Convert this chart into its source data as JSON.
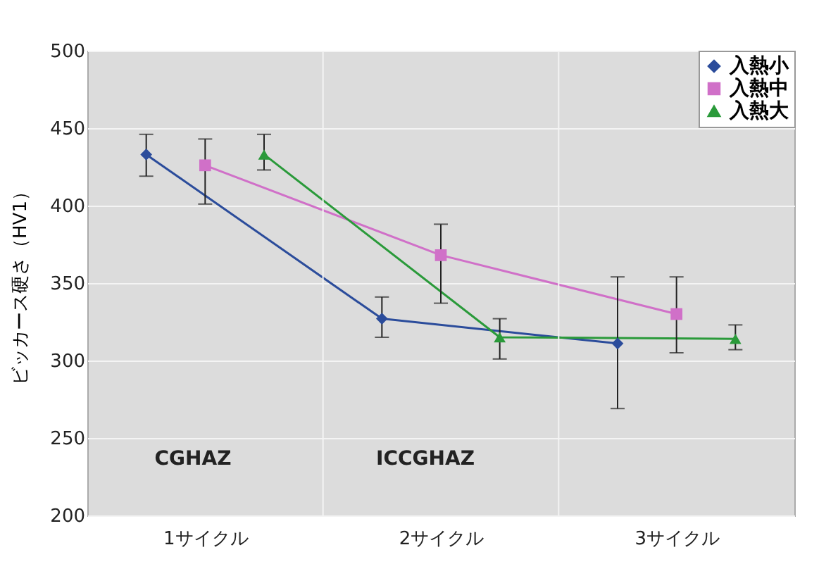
{
  "chart_data": {
    "type": "line",
    "ylabel": "ビッカース硬さ（HV1）",
    "xlim": [
      0.5,
      3.5
    ],
    "xticks": [
      {
        "value": 1,
        "label": "1サイクル"
      },
      {
        "value": 2,
        "label": "2サイクル"
      },
      {
        "value": 3,
        "label": "3サイクル"
      }
    ],
    "ylim": [
      200,
      500
    ],
    "yticks": [
      200,
      250,
      300,
      350,
      400,
      450,
      500
    ],
    "grid": "y",
    "legend": "top right",
    "series": [
      {
        "name": "入熱小",
        "color": "#2b4c9b",
        "marker": "diamond",
        "x": [
          0.75,
          1.75,
          2.75
        ],
        "values": [
          433,
          327,
          311
        ],
        "errors": [
          [
            419,
            446
          ],
          [
            315,
            341
          ],
          [
            269,
            354
          ]
        ]
      },
      {
        "name": "入熱中",
        "color": "#d070c8",
        "marker": "square",
        "x": [
          1,
          2,
          3
        ],
        "values": [
          426,
          368,
          330
        ],
        "errors": [
          [
            401,
            443
          ],
          [
            337,
            388
          ],
          [
            305,
            354
          ]
        ]
      },
      {
        "name": "入熱大",
        "color": "#2a9a3a",
        "marker": "triangle",
        "x": [
          1.25,
          2.25,
          3.25
        ],
        "values": [
          433,
          315,
          314
        ],
        "errors": [
          [
            423,
            446
          ],
          [
            301,
            327
          ],
          [
            307,
            323
          ]
        ]
      }
    ],
    "ref_lines": [
      {
        "axis": "x",
        "value": 1.5,
        "color": "#f4f4f4"
      },
      {
        "axis": "x",
        "value": 2.5,
        "color": "#f4f4f4"
      }
    ],
    "annotations": [
      "CGHAZ",
      "ICCGHAZ"
    ]
  }
}
